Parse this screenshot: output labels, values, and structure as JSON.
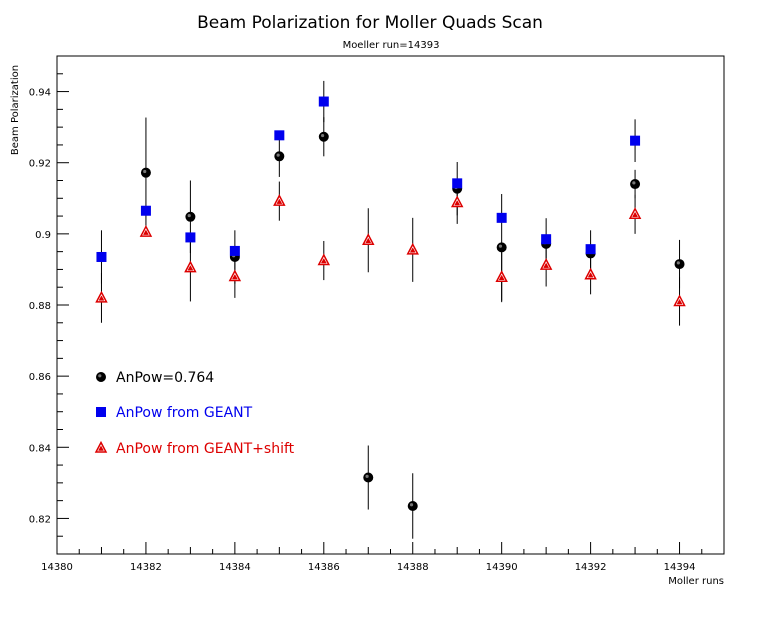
{
  "chart_data": {
    "type": "scatter",
    "title": "Beam Polarization for Moller Quads Scan",
    "subtitle": "Moeller run=14393",
    "xlabel": "Moller runs",
    "ylabel": "Beam Polarization",
    "xlim": [
      14380,
      14395
    ],
    "ylim": [
      0.81,
      0.95
    ],
    "x_ticks": [
      "14380",
      "14382",
      "14384",
      "14386",
      "14388",
      "14390",
      "14392",
      "14394"
    ],
    "y_ticks": [
      "0.82",
      "0.84",
      "0.86",
      "0.88",
      "0.9",
      "0.92",
      "0.94"
    ],
    "grid": false,
    "legend_position": "left, inside plot",
    "series": [
      {
        "name": "AnPow=0.764",
        "marker": "circle",
        "color": "#000000",
        "points": [
          {
            "x": 14382,
            "y": 0.9172,
            "err": 0.0155
          },
          {
            "x": 14383,
            "y": 0.9048,
            "err": 0.0102
          },
          {
            "x": 14384,
            "y": 0.8935,
            "err": 0.0075
          },
          {
            "x": 14385,
            "y": 0.9218,
            "err": 0.0058
          },
          {
            "x": 14386,
            "y": 0.9273,
            "err": 0.0055
          },
          {
            "x": 14387,
            "y": 0.8315,
            "err": 0.009
          },
          {
            "x": 14388,
            "y": 0.8235,
            "err": 0.0092
          },
          {
            "x": 14389,
            "y": 0.9127,
            "err": 0.0075
          },
          {
            "x": 14390,
            "y": 0.8962,
            "err": 0.015
          },
          {
            "x": 14391,
            "y": 0.8972,
            "err": 0.0072
          },
          {
            "x": 14392,
            "y": 0.8945,
            "err": 0.0065
          },
          {
            "x": 14393,
            "y": 0.914,
            "err": 0.004
          },
          {
            "x": 14394,
            "y": 0.8915,
            "err": 0.0068
          }
        ]
      },
      {
        "name": "AnPow from GEANT",
        "marker": "square",
        "color": "#0000ee",
        "points": [
          {
            "x": 14381,
            "y": 0.8935,
            "err": 0.0075
          },
          {
            "x": 14382,
            "y": 0.9065,
            "err": 0
          },
          {
            "x": 14383,
            "y": 0.899,
            "err": 0
          },
          {
            "x": 14384,
            "y": 0.8952,
            "err": 0
          },
          {
            "x": 14385,
            "y": 0.9277,
            "err": 0
          },
          {
            "x": 14386,
            "y": 0.9372,
            "err": 0.0058
          },
          {
            "x": 14389,
            "y": 0.9142,
            "err": 0
          },
          {
            "x": 14390,
            "y": 0.9045,
            "err": 0
          },
          {
            "x": 14391,
            "y": 0.8985,
            "err": 0
          },
          {
            "x": 14392,
            "y": 0.8957,
            "err": 0
          },
          {
            "x": 14393,
            "y": 0.9262,
            "err": 0.006
          }
        ]
      },
      {
        "name": "AnPow from GEANT+shift",
        "marker": "triangle",
        "color": "#dd0000",
        "points": [
          {
            "x": 14381,
            "y": 0.882,
            "err": 0.007
          },
          {
            "x": 14382,
            "y": 0.9005,
            "err": 0
          },
          {
            "x": 14383,
            "y": 0.8905,
            "err": 0.0095
          },
          {
            "x": 14384,
            "y": 0.888,
            "err": 0.006
          },
          {
            "x": 14385,
            "y": 0.9092,
            "err": 0.0055
          },
          {
            "x": 14386,
            "y": 0.8925,
            "err": 0.0055
          },
          {
            "x": 14387,
            "y": 0.8982,
            "err": 0.009
          },
          {
            "x": 14388,
            "y": 0.8955,
            "err": 0.009
          },
          {
            "x": 14389,
            "y": 0.9088,
            "err": 0.006
          },
          {
            "x": 14390,
            "y": 0.8878,
            "err": 0.007
          },
          {
            "x": 14391,
            "y": 0.8912,
            "err": 0.006
          },
          {
            "x": 14392,
            "y": 0.8885,
            "err": 0.0055
          },
          {
            "x": 14393,
            "y": 0.9055,
            "err": 0.0055
          },
          {
            "x": 14394,
            "y": 0.881,
            "err": 0.0068
          }
        ]
      }
    ]
  }
}
